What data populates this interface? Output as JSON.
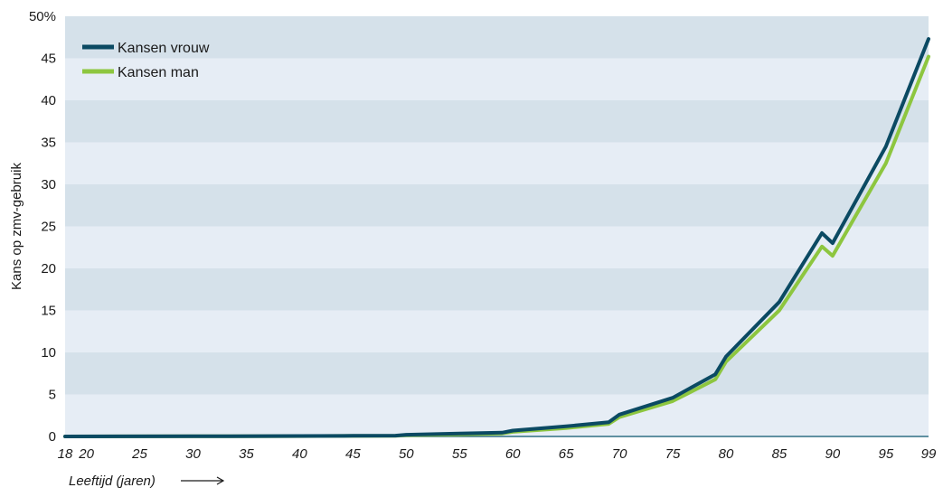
{
  "chart_data": {
    "type": "line",
    "xlabel": "Leeftijd (jaren)",
    "ylabel": "Kans op zmv-gebruik",
    "ylim": [
      0,
      50
    ],
    "xlim": [
      18,
      99
    ],
    "y_ticks": [
      "0",
      "5",
      "10",
      "15",
      "20",
      "25",
      "30",
      "35",
      "40",
      "45",
      "50%"
    ],
    "y_tick_values": [
      0,
      5,
      10,
      15,
      20,
      25,
      30,
      35,
      40,
      45,
      50
    ],
    "x_ticks": [
      "18",
      "20",
      "25",
      "30",
      "35",
      "40",
      "45",
      "50",
      "55",
      "60",
      "65",
      "70",
      "75",
      "80",
      "85",
      "90",
      "95",
      "99"
    ],
    "x_tick_values": [
      18,
      20,
      25,
      30,
      35,
      40,
      45,
      50,
      55,
      60,
      65,
      70,
      75,
      80,
      85,
      90,
      95,
      99
    ],
    "legend_position": "top-left",
    "grid": "horizontal alternating bands",
    "colors": {
      "band_dark": "#d5e1ea",
      "band_light": "#e6edf5",
      "axis": "#2f6f84"
    },
    "series": [
      {
        "name": "Kansen vrouw",
        "color": "#0b4a63",
        "x": [
          18,
          30,
          40,
          45,
          49,
          50,
          55,
          59,
          60,
          65,
          69,
          70,
          75,
          79,
          80,
          85,
          89,
          90,
          95,
          99
        ],
        "values": [
          0,
          0.02,
          0.05,
          0.08,
          0.1,
          0.2,
          0.35,
          0.45,
          0.7,
          1.2,
          1.7,
          2.6,
          4.6,
          7.4,
          9.5,
          16.0,
          24.2,
          23.0,
          34.5,
          47.3
        ]
      },
      {
        "name": "Kansen man",
        "color": "#8dc63f",
        "x": [
          18,
          30,
          40,
          45,
          49,
          50,
          55,
          59,
          60,
          65,
          69,
          70,
          75,
          79,
          80,
          85,
          89,
          90,
          95,
          99
        ],
        "values": [
          0,
          0.02,
          0.04,
          0.06,
          0.08,
          0.15,
          0.25,
          0.35,
          0.55,
          1.0,
          1.5,
          2.3,
          4.2,
          6.8,
          8.9,
          15.0,
          22.6,
          21.5,
          32.5,
          45.2
        ]
      }
    ]
  }
}
